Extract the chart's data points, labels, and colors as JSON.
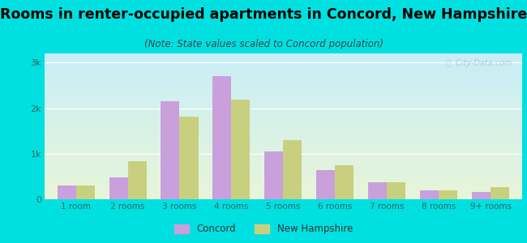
{
  "title": "Rooms in renter-occupied apartments in Concord, New Hampshire",
  "subtitle": "(Note: State values scaled to Concord population)",
  "categories": [
    "1 room",
    "2 rooms",
    "3 rooms",
    "4 rooms",
    "5 rooms",
    "6 rooms",
    "7 rooms",
    "8 rooms",
    "9+ rooms"
  ],
  "concord_values": [
    300,
    480,
    2150,
    2700,
    1050,
    640,
    380,
    200,
    160
  ],
  "nh_values": [
    295,
    830,
    1820,
    2180,
    1300,
    740,
    375,
    200,
    270
  ],
  "concord_color": "#c9a0dc",
  "nh_color": "#c8d080",
  "background_color": "#00e0e0",
  "grad_top": "#c8eef8",
  "grad_bottom": "#e8f5d8",
  "ylim": [
    0,
    3200
  ],
  "yticks": [
    0,
    1000,
    2000,
    3000
  ],
  "ytick_labels": [
    "0",
    "1k",
    "2k",
    "3k"
  ],
  "title_fontsize": 12.5,
  "subtitle_fontsize": 8.5,
  "bar_width": 0.36,
  "watermark": "ⓘ  City-Data.com",
  "tick_color": "#336666",
  "grid_color": "#ffffff"
}
